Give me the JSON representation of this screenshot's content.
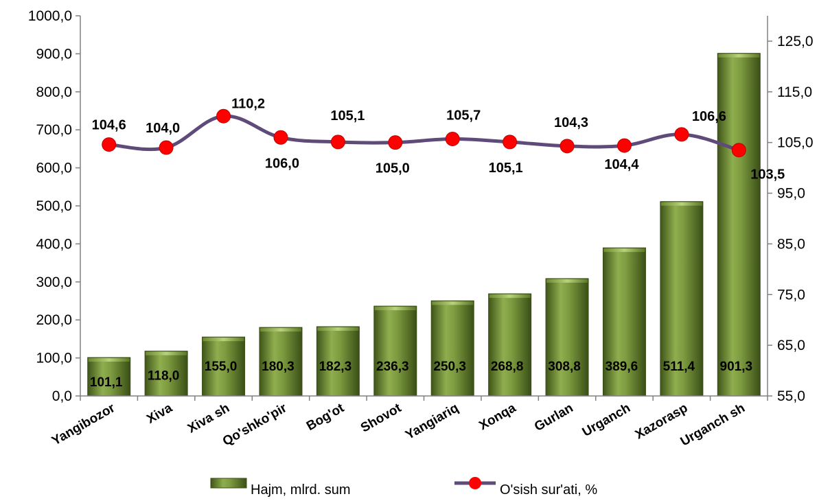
{
  "chart_data": {
    "type": "bar",
    "categories": [
      "Yangibozor",
      "Xiva",
      "Xiva sh",
      "Qo'shko'pir",
      "Bog'ot",
      "Shovot",
      "Yangiariq",
      "Xonqa",
      "Gurlan",
      "Urganch",
      "Xazorasp",
      "Urganch sh"
    ],
    "series": [
      {
        "name": "Hajm, mlrd. sum",
        "chart_type": "bar",
        "axis": "left",
        "color": "#77933c",
        "values": [
          101.1,
          118.0,
          155.0,
          180.3,
          182.3,
          236.3,
          250.3,
          268.8,
          308.8,
          389.6,
          511.4,
          901.3
        ],
        "labels": [
          "101,1",
          "118,0",
          "155,0",
          "180,3",
          "182,3",
          "236,3",
          "250,3",
          "268,8",
          "308,8",
          "389,6",
          "511,4",
          "901,3"
        ]
      },
      {
        "name": "O'sish sur'ati, %",
        "chart_type": "line",
        "axis": "right",
        "line_color": "#5e4b7a",
        "marker_color": "#ff0000",
        "values": [
          104.6,
          104.0,
          110.2,
          106.0,
          105.1,
          105.0,
          105.7,
          105.1,
          104.3,
          104.4,
          106.6,
          103.5
        ],
        "labels": [
          "104,6",
          "104,0",
          "110,2",
          "106,0",
          "105,1",
          "105,0",
          "105,7",
          "105,1",
          "104,3",
          "104,4",
          "106,6",
          "103,5"
        ]
      }
    ],
    "left_axis": {
      "ylim": [
        0,
        1000
      ],
      "ticks": [
        0,
        100,
        200,
        300,
        400,
        500,
        600,
        700,
        800,
        900,
        1000
      ],
      "tick_labels": [
        "0,0",
        "100,0",
        "200,0",
        "300,0",
        "400,0",
        "500,0",
        "600,0",
        "700,0",
        "800,0",
        "900,0",
        "1000,0"
      ]
    },
    "right_axis": {
      "ylim": [
        55,
        130
      ],
      "ticks": [
        55,
        65,
        75,
        85,
        95,
        105,
        115,
        125
      ],
      "tick_labels": [
        "55,0",
        "65,0",
        "75,0",
        "85,0",
        "95,0",
        "105,0",
        "115,0",
        "125,0"
      ]
    },
    "grid": false,
    "legend_position": "bottom",
    "legend": [
      "Hajm, mlrd. sum",
      "O'sish sur'ati, %"
    ],
    "title": "",
    "xlabel": "",
    "ylabel": ""
  }
}
